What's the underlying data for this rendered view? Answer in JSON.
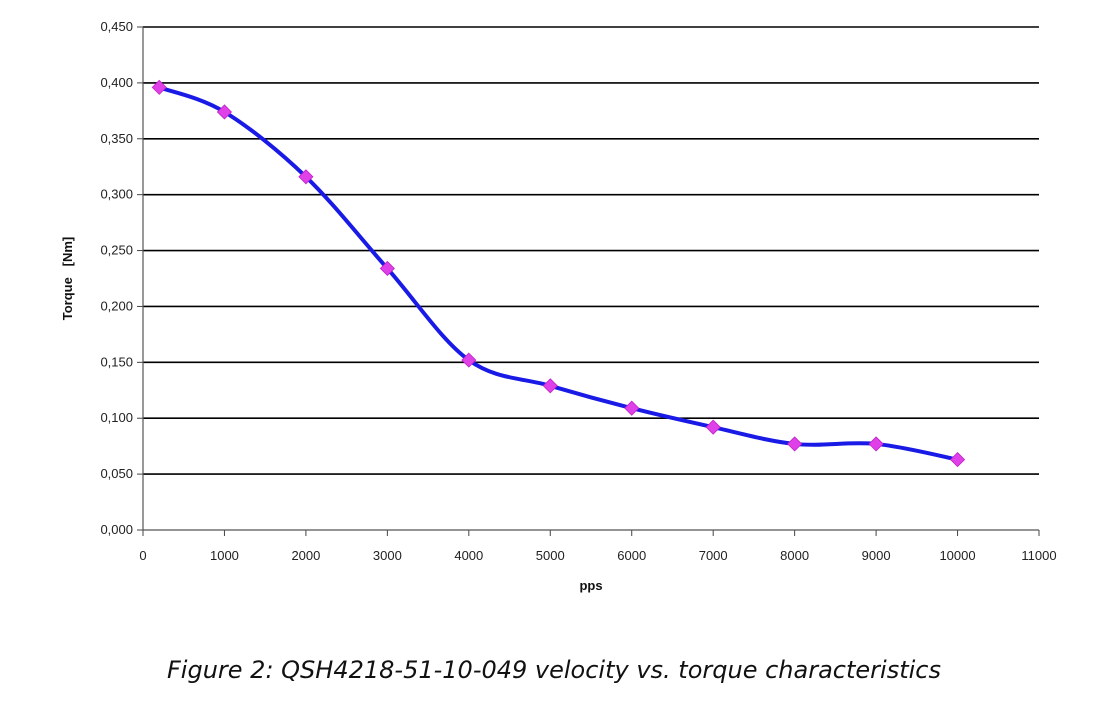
{
  "caption": "Figure 2: QSH4218-51-10-049 velocity vs. torque characteristics",
  "chart_data": {
    "type": "line",
    "xlabel": "pps",
    "ylabel": "Torque   [Nm]",
    "xlim": [
      0,
      11000
    ],
    "ylim": [
      0,
      0.45
    ],
    "x_ticks": [
      "0",
      "1000",
      "2000",
      "3000",
      "4000",
      "5000",
      "6000",
      "7000",
      "8000",
      "9000",
      "10000",
      "11000"
    ],
    "y_ticks": [
      "0,000",
      "0,050",
      "0,100",
      "0,150",
      "0,200",
      "0,250",
      "0,300",
      "0,350",
      "0,400",
      "0,450"
    ],
    "grid": "horizontal",
    "series": [
      {
        "x": [
          200,
          1000,
          2000,
          3000,
          4000,
          5000,
          6000,
          7000,
          8000,
          9000,
          10000
        ],
        "values": [
          0.396,
          0.374,
          0.316,
          0.234,
          0.152,
          0.129,
          0.109,
          0.092,
          0.077,
          0.077,
          0.063
        ],
        "line_color": "#1a1ae6",
        "marker_color": "#e040e8",
        "marker": "diamond"
      }
    ]
  }
}
